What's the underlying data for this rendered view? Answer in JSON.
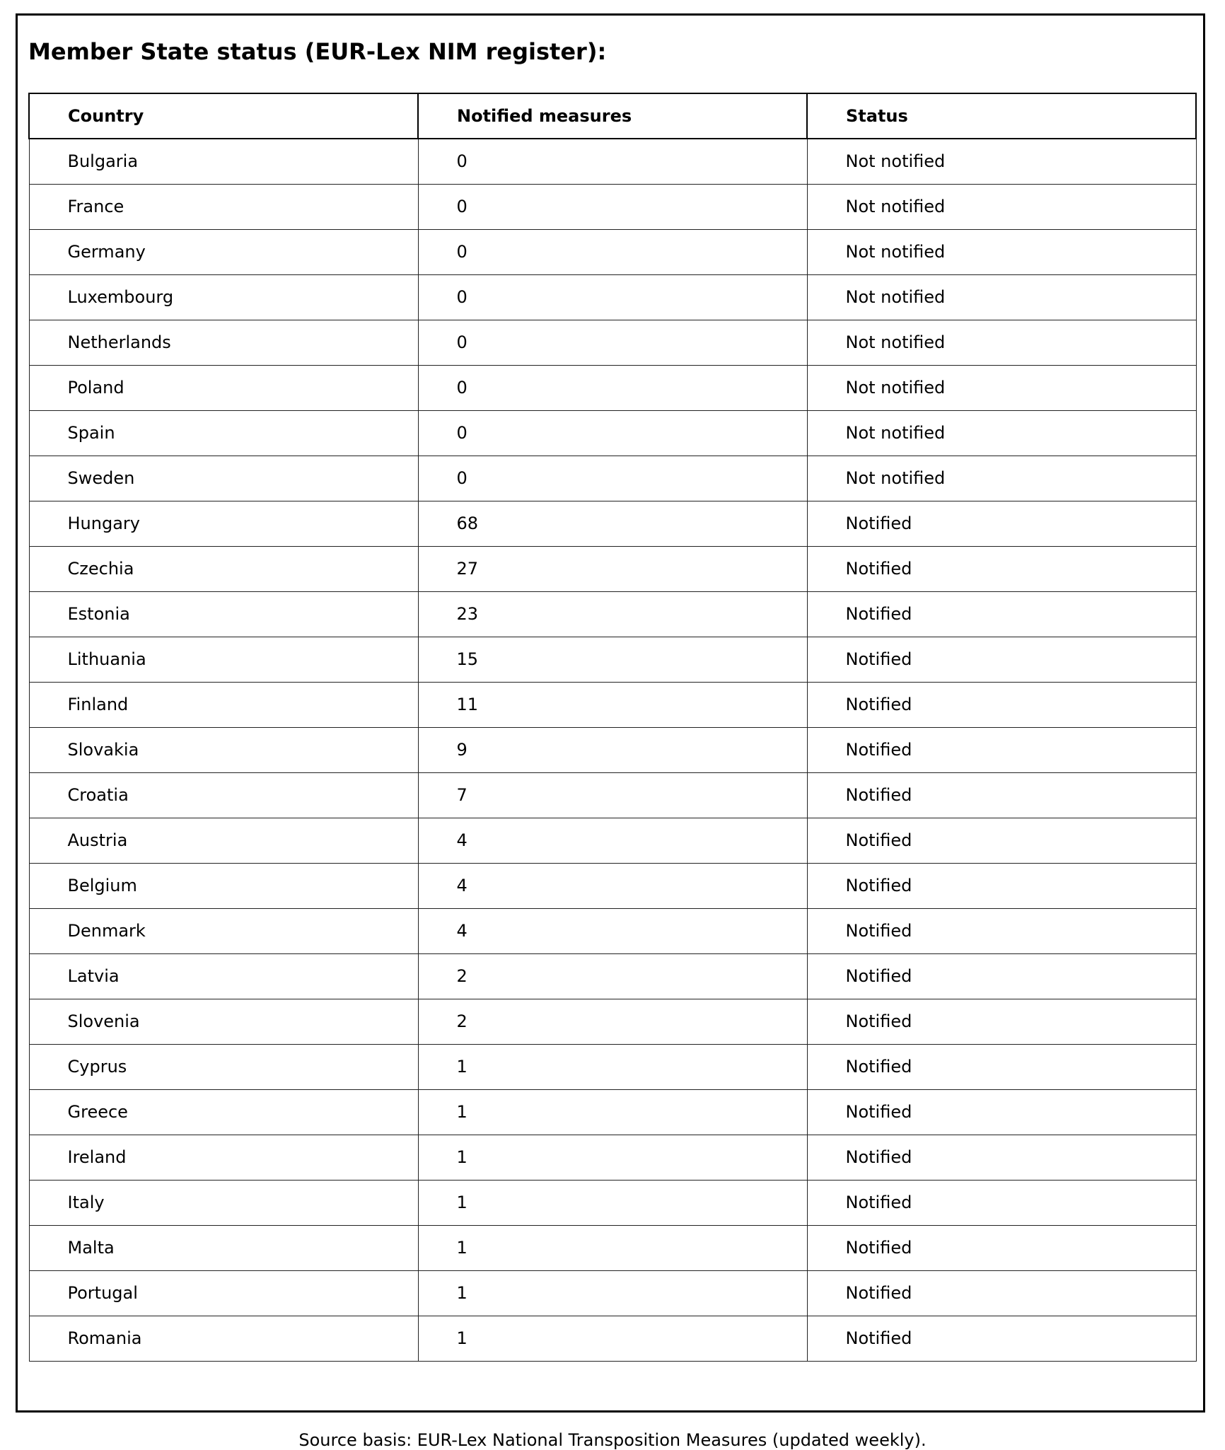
{
  "title": "Member State status (EUR-Lex NIM register):",
  "table": {
    "headers": [
      "Country",
      "Notified measures",
      "Status"
    ],
    "rows": [
      [
        "Bulgaria",
        "0",
        "Not notified"
      ],
      [
        "France",
        "0",
        "Not notified"
      ],
      [
        "Germany",
        "0",
        "Not notified"
      ],
      [
        "Luxembourg",
        "0",
        "Not notified"
      ],
      [
        "Netherlands",
        "0",
        "Not notified"
      ],
      [
        "Poland",
        "0",
        "Not notified"
      ],
      [
        "Spain",
        "0",
        "Not notified"
      ],
      [
        "Sweden",
        "0",
        "Not notified"
      ],
      [
        "Hungary",
        "68",
        "Notified"
      ],
      [
        "Czechia",
        "27",
        "Notified"
      ],
      [
        "Estonia",
        "23",
        "Notified"
      ],
      [
        "Lithuania",
        "15",
        "Notified"
      ],
      [
        "Finland",
        "11",
        "Notified"
      ],
      [
        "Slovakia",
        "9",
        "Notified"
      ],
      [
        "Croatia",
        "7",
        "Notified"
      ],
      [
        "Austria",
        "4",
        "Notified"
      ],
      [
        "Belgium",
        "4",
        "Notified"
      ],
      [
        "Denmark",
        "4",
        "Notified"
      ],
      [
        "Latvia",
        "2",
        "Notified"
      ],
      [
        "Slovenia",
        "2",
        "Notified"
      ],
      [
        "Cyprus",
        "1",
        "Notified"
      ],
      [
        "Greece",
        "1",
        "Notified"
      ],
      [
        "Ireland",
        "1",
        "Notified"
      ],
      [
        "Italy",
        "1",
        "Notified"
      ],
      [
        "Malta",
        "1",
        "Notified"
      ],
      [
        "Portugal",
        "1",
        "Notified"
      ],
      [
        "Romania",
        "1",
        "Notified"
      ]
    ]
  },
  "footer": "Source basis: EUR-Lex National Transposition Measures (updated weekly)."
}
